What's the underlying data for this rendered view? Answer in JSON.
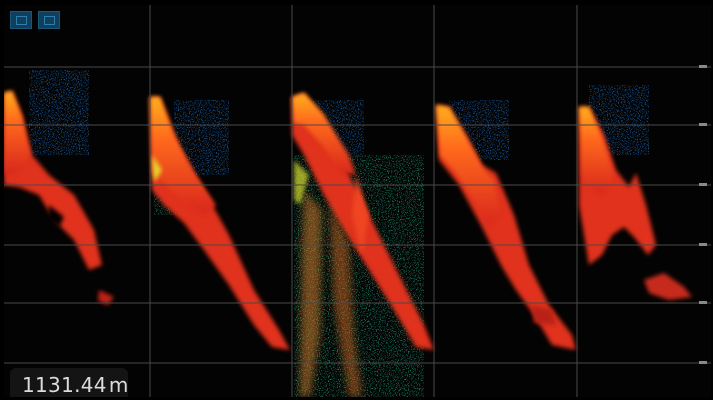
{
  "toolbar": {
    "buttons": [
      {
        "name": "display-mode-button-1",
        "icon": "echogram-window-icon"
      },
      {
        "name": "display-mode-button-2",
        "icon": "echogram-window-icon"
      }
    ],
    "button_color": "#0f3f5e"
  },
  "echogram": {
    "columns": 5,
    "horizontal_gridlines": 6,
    "grid_color": "#4a4a4a",
    "colors": {
      "strong": "#e8361c",
      "medium": "#ff8c1a",
      "weak": "#f2e02a",
      "faint": "#1f8a6a",
      "background_noise": "#1b5fa8"
    }
  },
  "depth_readout": {
    "value": "1131.44",
    "unit": "m"
  }
}
